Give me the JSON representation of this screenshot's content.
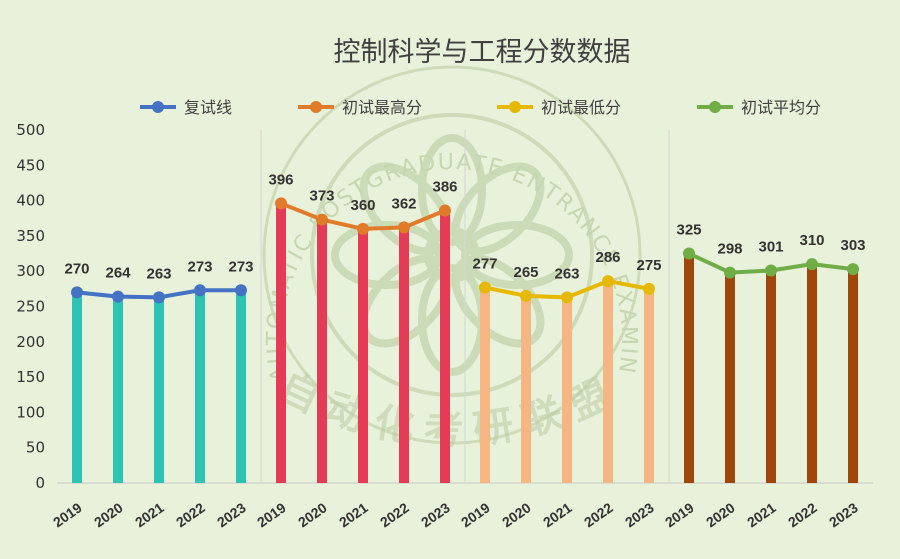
{
  "chart_data": {
    "type": "line",
    "title": "控制科学与工程分数数据",
    "ylim": [
      0,
      500
    ],
    "y_ticks": [
      0,
      50,
      100,
      150,
      200,
      250,
      300,
      350,
      400,
      450,
      500
    ],
    "grid": false,
    "legend_position": "top",
    "categories": [
      "2019",
      "2020",
      "2021",
      "2022",
      "2023"
    ],
    "series": [
      {
        "name": "复试线",
        "values": [
          270,
          264,
          263,
          273,
          273
        ],
        "line_color": "#4472c4",
        "bar_color": "#2ec4b3"
      },
      {
        "name": "初试最高分",
        "values": [
          396,
          373,
          360,
          362,
          386
        ],
        "line_color": "#e07b2a",
        "bar_color": "#e63b57"
      },
      {
        "name": "初试最低分",
        "values": [
          277,
          265,
          263,
          286,
          275
        ],
        "line_color": "#e6b800",
        "bar_color": "#f5b684"
      },
      {
        "name": "初试平均分",
        "values": [
          325,
          298,
          301,
          310,
          303
        ],
        "line_color": "#70ad47",
        "bar_color": "#a0460a"
      }
    ]
  },
  "watermark": {
    "text": "自动化考研联盟",
    "ring_text": "AUTOMATIC POSTGRADUATE ENTRANCE EXAMINATION ALLIANCE",
    "color": "#b9cba2"
  }
}
